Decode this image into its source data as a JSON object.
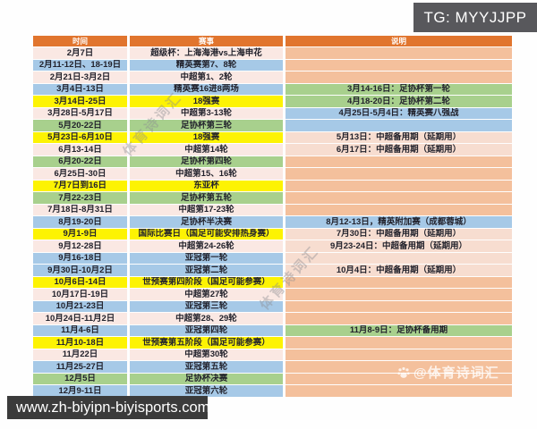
{
  "badge": {
    "text": "TG: MYYJJPP"
  },
  "footer": {
    "url": "www.zh-biyipn-biyisports.com"
  },
  "watermarks": {
    "diagonal1": "体育诗词汇",
    "diagonal2": "体育诗词汇",
    "corner": "@体育诗词汇"
  },
  "colors": {
    "header": "#e1752e",
    "badge": "#58585c",
    "footer": "#3b3b3b",
    "pink": "#fae8e3",
    "blue": "#a6c9e7",
    "yellow": "#fdf303",
    "green": "#a8d08d",
    "orange": "#f4c09c",
    "notepink": "#f7ddd0"
  },
  "table": {
    "headers": [
      "时间",
      "赛事",
      "说明"
    ],
    "rows": [
      {
        "time": "2月7日",
        "event": "超级杯：上海海港vs上海申花",
        "note": "",
        "color": "pink",
        "note_color": "orange"
      },
      {
        "time": "2月11-12日、18-19日",
        "event": "精英赛第7、8轮",
        "note": "",
        "color": "blue",
        "note_color": "orange"
      },
      {
        "time": "2月21日-3月2日",
        "event": "中超第1、2轮",
        "note": "",
        "color": "pink",
        "note_color": "orange"
      },
      {
        "time": "3月4日-13日",
        "event": "精英赛16进8两场",
        "note": "3月14-16日：足协杯第一轮",
        "color": "blue",
        "note_color": "green"
      },
      {
        "time": "3月14日-25日",
        "event": "18强赛",
        "note": "4月18-20日：足协杯第二轮",
        "color": "yellow",
        "note_color": "green"
      },
      {
        "time": "3月28日-5月17日",
        "event": "中超第3-13轮",
        "note": "4月25日-5月4日：精英赛八强战",
        "color": "pink",
        "note_color": "blue"
      },
      {
        "time": "5月20-22日",
        "event": "足协杯第三轮",
        "note": "",
        "color": "green",
        "note_color": "blue"
      },
      {
        "time": "5月23日-6月10日",
        "event": "18强赛",
        "note": "5月13日：中超备用期（延期用）",
        "color": "yellow",
        "note_color": "notepink"
      },
      {
        "time": "6月13-14日",
        "event": "中超第14轮",
        "note": "6月17日：中超备用期（延期用）",
        "color": "pink",
        "note_color": "notepink"
      },
      {
        "time": "6月20-22日",
        "event": "足协杯第四轮",
        "note": "",
        "color": "green",
        "note_color": "orange"
      },
      {
        "time": "6月25日-30日",
        "event": "中超第15、16轮",
        "note": "",
        "color": "pink",
        "note_color": "orange"
      },
      {
        "time": "7月7日到16日",
        "event": "东亚杯",
        "note": "",
        "color": "yellow",
        "note_color": "orange"
      },
      {
        "time": "7月22-23日",
        "event": "足协杯第五轮",
        "note": "",
        "color": "green",
        "note_color": "orange"
      },
      {
        "time": "7月18日-8月31日",
        "event": "中超第17-23轮",
        "note": "",
        "color": "pink",
        "note_color": "orange"
      },
      {
        "time": "8月19-20日",
        "event": "足协杯半决赛",
        "note": "8月12-13日，精英附加赛（成都蓉城）",
        "color": "blue",
        "note_color": "blue"
      },
      {
        "time": "9月1-9日",
        "event": "国际比赛日（国足可能安排热身赛）",
        "note": "7月30日：中超备用期（延期用）",
        "color": "yellow",
        "note_color": "notepink"
      },
      {
        "time": "9月12-28日",
        "event": "中超第24-26轮",
        "note": "9月23-24日：中超备用期（延期用）",
        "color": "pink",
        "note_color": "notepink"
      },
      {
        "time": "9月16-18日",
        "event": "亚冠第一轮",
        "note": "",
        "color": "blue",
        "note_color": "notepink"
      },
      {
        "time": "9月30日-10月2日",
        "event": "亚冠第二轮",
        "note": "10月4日：中超备用期（延期用）",
        "color": "blue",
        "note_color": "notepink"
      },
      {
        "time": "10月6日-14日",
        "event": "世预赛第四阶段（国足可能参赛）",
        "note": "",
        "color": "yellow",
        "note_color": "orange"
      },
      {
        "time": "10月17日-19日",
        "event": "中超第27轮",
        "note": "",
        "color": "pink",
        "note_color": "orange"
      },
      {
        "time": "10月21-23日",
        "event": "亚冠第三轮",
        "note": "",
        "color": "blue",
        "note_color": "orange"
      },
      {
        "time": "10月24日-11月2日",
        "event": "中超第28、29轮",
        "note": "",
        "color": "pink",
        "note_color": "orange"
      },
      {
        "time": "11月4-6日",
        "event": "亚冠第四轮",
        "note": "11月8-9日：足协杯备用期",
        "color": "blue",
        "note_color": "green"
      },
      {
        "time": "11月10-18日",
        "event": "世预赛第五阶段（国足可能参赛）",
        "note": "",
        "color": "yellow",
        "note_color": "orange"
      },
      {
        "time": "11月22日",
        "event": "中超第30轮",
        "note": "",
        "color": "pink",
        "note_color": "orange"
      },
      {
        "time": "11月25-27日",
        "event": "亚冠第五轮",
        "note": "",
        "color": "blue",
        "note_color": "orange"
      },
      {
        "time": "12月5日",
        "event": "足协杯决赛",
        "note": "",
        "color": "green",
        "note_color": "orange"
      },
      {
        "time": "12月9-11日",
        "event": "亚冠第六轮",
        "note": "",
        "color": "blue",
        "note_color": "orange"
      }
    ]
  }
}
